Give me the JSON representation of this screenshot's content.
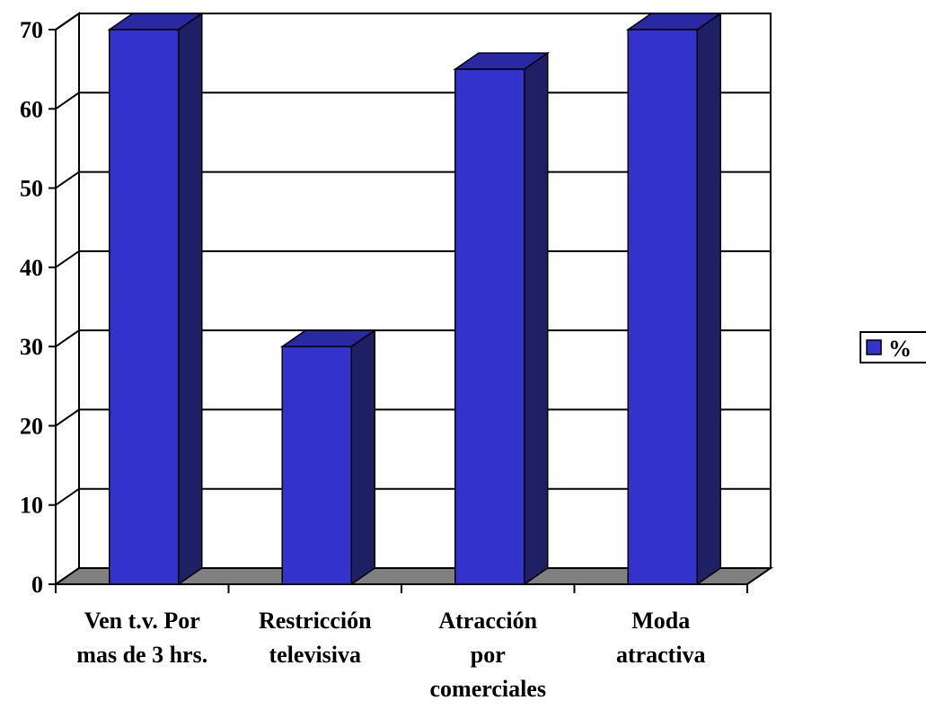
{
  "chart_data": {
    "type": "bar",
    "style": "3d-column",
    "categories": [
      [
        "Ven t.v. Por",
        "mas de 3 hrs."
      ],
      [
        "Restricción",
        "televisiva"
      ],
      [
        "Atracción",
        "por",
        "comerciales"
      ],
      [
        "Moda",
        "atractiva"
      ]
    ],
    "series": [
      {
        "name": "%",
        "values": [
          70,
          30,
          65,
          70
        ]
      }
    ],
    "ylim": [
      0,
      70
    ],
    "yticks": [
      0,
      10,
      20,
      30,
      40,
      50,
      60,
      70
    ],
    "grid": true,
    "legend_position": "right",
    "colors": {
      "bar_front": "#3333CC",
      "bar_side": "#1F1F66",
      "bar_top": "#2929A3",
      "floor": "#808080",
      "grid": "#000000"
    }
  }
}
